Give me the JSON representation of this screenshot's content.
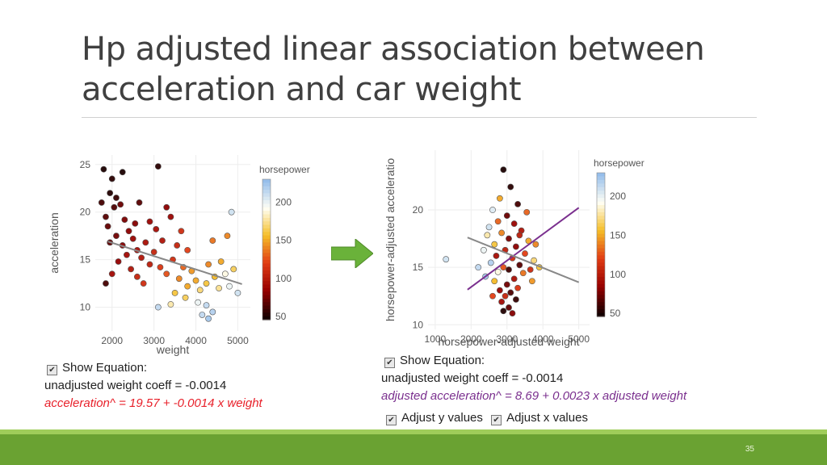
{
  "slide": {
    "title": "Hp adjusted linear association between acceleration and car weight",
    "page_number": "35",
    "arrow_color": "#6ab23a"
  },
  "left_panel": {
    "show_equation_label": "Show Equation:",
    "unadjusted_text": "unadjusted weight coeff = -0.0014",
    "equation": "acceleration^ = 19.57 + -0.0014 x weight",
    "equation_color": "#e8202a"
  },
  "right_panel": {
    "show_equation_label": "Show Equation:",
    "unadjusted_text": "unadjusted weight coeff = -0.0014",
    "equation": "adjusted acceleration^ = 8.69 + 0.0023 x adjusted weight",
    "equation_color": "#7a2f8e",
    "adjust_y_label": "Adjust y values",
    "adjust_x_label": "Adjust x values",
    "adjust_y_checked": true,
    "adjust_x_checked": true
  },
  "chart_data": [
    {
      "type": "scatter",
      "xlabel": "weight",
      "ylabel": "acceleration",
      "xlim": [
        1600,
        5300
      ],
      "ylim": [
        7.5,
        26
      ],
      "xticks": [
        2000,
        3000,
        4000,
        5000
      ],
      "yticks": [
        10,
        15,
        20,
        25
      ],
      "grid": true,
      "colorbar": {
        "title": "horsepower",
        "ticks": [
          50,
          100,
          150,
          200
        ],
        "range": [
          46,
          230
        ]
      },
      "lines": [
        {
          "name": "",
          "color": "#888888",
          "x": [
            1900,
            5100
          ],
          "y": [
            16.91,
            12.43
          ]
        }
      ],
      "points": [
        {
          "x": 1800,
          "y": 24.5,
          "hp": 48
        },
        {
          "x": 2000,
          "y": 23.5,
          "hp": 52
        },
        {
          "x": 1950,
          "y": 22.0,
          "hp": 50
        },
        {
          "x": 2100,
          "y": 21.5,
          "hp": 55
        },
        {
          "x": 1750,
          "y": 21.0,
          "hp": 60
        },
        {
          "x": 2050,
          "y": 20.5,
          "hp": 62
        },
        {
          "x": 1850,
          "y": 19.5,
          "hp": 65
        },
        {
          "x": 2200,
          "y": 20.8,
          "hp": 70
        },
        {
          "x": 1900,
          "y": 18.5,
          "hp": 68
        },
        {
          "x": 2300,
          "y": 19.2,
          "hp": 75
        },
        {
          "x": 2400,
          "y": 18.0,
          "hp": 80
        },
        {
          "x": 2100,
          "y": 17.5,
          "hp": 72
        },
        {
          "x": 1950,
          "y": 16.8,
          "hp": 67
        },
        {
          "x": 2250,
          "y": 16.5,
          "hp": 78
        },
        {
          "x": 2500,
          "y": 17.2,
          "hp": 85
        },
        {
          "x": 2600,
          "y": 16.0,
          "hp": 90
        },
        {
          "x": 2350,
          "y": 15.5,
          "hp": 88
        },
        {
          "x": 2700,
          "y": 15.2,
          "hp": 95
        },
        {
          "x": 2800,
          "y": 16.8,
          "hp": 92
        },
        {
          "x": 2900,
          "y": 14.5,
          "hp": 100
        },
        {
          "x": 2150,
          "y": 14.8,
          "hp": 82
        },
        {
          "x": 2450,
          "y": 14.0,
          "hp": 95
        },
        {
          "x": 2000,
          "y": 13.5,
          "hp": 88
        },
        {
          "x": 2600,
          "y": 13.2,
          "hp": 105
        },
        {
          "x": 2750,
          "y": 12.5,
          "hp": 110
        },
        {
          "x": 2900,
          "y": 19.0,
          "hp": 85
        },
        {
          "x": 3050,
          "y": 18.2,
          "hp": 90
        },
        {
          "x": 3200,
          "y": 17.0,
          "hp": 95
        },
        {
          "x": 3100,
          "y": 24.8,
          "hp": 52
        },
        {
          "x": 2250,
          "y": 24.2,
          "hp": 48
        },
        {
          "x": 3300,
          "y": 20.5,
          "hp": 80
        },
        {
          "x": 3400,
          "y": 19.5,
          "hp": 85
        },
        {
          "x": 3000,
          "y": 15.8,
          "hp": 105
        },
        {
          "x": 3150,
          "y": 14.2,
          "hp": 115
        },
        {
          "x": 3300,
          "y": 13.5,
          "hp": 125
        },
        {
          "x": 3450,
          "y": 15.0,
          "hp": 110
        },
        {
          "x": 3550,
          "y": 16.5,
          "hp": 105
        },
        {
          "x": 3600,
          "y": 13.0,
          "hp": 140
        },
        {
          "x": 3700,
          "y": 14.2,
          "hp": 130
        },
        {
          "x": 3800,
          "y": 12.2,
          "hp": 150
        },
        {
          "x": 3900,
          "y": 13.8,
          "hp": 145
        },
        {
          "x": 4000,
          "y": 12.8,
          "hp": 150
        },
        {
          "x": 3500,
          "y": 11.5,
          "hp": 160
        },
        {
          "x": 3750,
          "y": 11.0,
          "hp": 165
        },
        {
          "x": 4100,
          "y": 11.8,
          "hp": 170
        },
        {
          "x": 4250,
          "y": 12.5,
          "hp": 160
        },
        {
          "x": 4300,
          "y": 14.5,
          "hp": 140
        },
        {
          "x": 4450,
          "y": 13.2,
          "hp": 155
        },
        {
          "x": 4550,
          "y": 12.0,
          "hp": 175
        },
        {
          "x": 4600,
          "y": 14.8,
          "hp": 150
        },
        {
          "x": 4700,
          "y": 13.5,
          "hp": 190
        },
        {
          "x": 4800,
          "y": 12.2,
          "hp": 200
        },
        {
          "x": 4900,
          "y": 14.0,
          "hp": 165
        },
        {
          "x": 4250,
          "y": 10.2,
          "hp": 215
        },
        {
          "x": 4400,
          "y": 9.5,
          "hp": 220
        },
        {
          "x": 4300,
          "y": 8.8,
          "hp": 225
        },
        {
          "x": 4150,
          "y": 9.2,
          "hp": 215
        },
        {
          "x": 4050,
          "y": 10.5,
          "hp": 200
        },
        {
          "x": 3100,
          "y": 10.0,
          "hp": 215
        },
        {
          "x": 3400,
          "y": 10.3,
          "hp": 180
        },
        {
          "x": 5000,
          "y": 11.5,
          "hp": 210
        },
        {
          "x": 4750,
          "y": 17.5,
          "hp": 140
        },
        {
          "x": 4400,
          "y": 17.0,
          "hp": 135
        },
        {
          "x": 1850,
          "y": 12.5,
          "hp": 60
        },
        {
          "x": 2650,
          "y": 21.0,
          "hp": 65
        },
        {
          "x": 2550,
          "y": 18.8,
          "hp": 78
        },
        {
          "x": 3800,
          "y": 16.0,
          "hp": 120
        },
        {
          "x": 3650,
          "y": 18.0,
          "hp": 110
        },
        {
          "x": 4850,
          "y": 20.0,
          "hp": 210
        }
      ]
    },
    {
      "type": "scatter",
      "xlabel": "horsepower-adjusted weight",
      "ylabel": "horsepower-adjusted acceleratio",
      "xlim": [
        800,
        5300
      ],
      "ylim": [
        9.6,
        25.2
      ],
      "xticks": [
        1000,
        2000,
        3000,
        4000,
        5000
      ],
      "yticks": [
        10,
        15,
        20
      ],
      "grid": true,
      "colorbar": {
        "title": "horsepower",
        "ticks": [
          50,
          100,
          150,
          200
        ],
        "range": [
          46,
          230
        ]
      },
      "lines": [
        {
          "name": "",
          "color": "#7a2f8e",
          "x": [
            1900,
            5000
          ],
          "y": [
            13.06,
            20.19
          ]
        },
        {
          "name": "",
          "color": "#888888",
          "x": [
            1900,
            5000
          ],
          "y": [
            17.6,
            13.7
          ]
        }
      ],
      "points": [
        {
          "x": 2900,
          "y": 23.5,
          "hp": 48
        },
        {
          "x": 3100,
          "y": 22.0,
          "hp": 52
        },
        {
          "x": 2800,
          "y": 21.0,
          "hp": 150
        },
        {
          "x": 3300,
          "y": 20.5,
          "hp": 60
        },
        {
          "x": 2600,
          "y": 20.0,
          "hp": 205
        },
        {
          "x": 3000,
          "y": 19.5,
          "hp": 70
        },
        {
          "x": 2750,
          "y": 19.0,
          "hp": 130
        },
        {
          "x": 3200,
          "y": 18.8,
          "hp": 85
        },
        {
          "x": 2500,
          "y": 18.5,
          "hp": 210
        },
        {
          "x": 3400,
          "y": 18.2,
          "hp": 95
        },
        {
          "x": 2850,
          "y": 18.0,
          "hp": 140
        },
        {
          "x": 3050,
          "y": 17.5,
          "hp": 75
        },
        {
          "x": 3600,
          "y": 17.3,
          "hp": 150
        },
        {
          "x": 2650,
          "y": 17.0,
          "hp": 160
        },
        {
          "x": 3250,
          "y": 16.8,
          "hp": 80
        },
        {
          "x": 2950,
          "y": 16.5,
          "hp": 100
        },
        {
          "x": 3500,
          "y": 16.2,
          "hp": 120
        },
        {
          "x": 2700,
          "y": 16.0,
          "hp": 90
        },
        {
          "x": 3150,
          "y": 15.8,
          "hp": 110
        },
        {
          "x": 1300,
          "y": 15.7,
          "hp": 210
        },
        {
          "x": 3750,
          "y": 15.6,
          "hp": 170
        },
        {
          "x": 2550,
          "y": 15.4,
          "hp": 220
        },
        {
          "x": 3350,
          "y": 15.2,
          "hp": 65
        },
        {
          "x": 2900,
          "y": 15.0,
          "hp": 125
        },
        {
          "x": 3050,
          "y": 14.8,
          "hp": 58
        },
        {
          "x": 2750,
          "y": 14.6,
          "hp": 190
        },
        {
          "x": 3450,
          "y": 14.5,
          "hp": 135
        },
        {
          "x": 2400,
          "y": 14.2,
          "hp": 225
        },
        {
          "x": 3200,
          "y": 14.0,
          "hp": 92
        },
        {
          "x": 2650,
          "y": 13.8,
          "hp": 155
        },
        {
          "x": 3000,
          "y": 13.5,
          "hp": 72
        },
        {
          "x": 3300,
          "y": 13.2,
          "hp": 115
        },
        {
          "x": 2800,
          "y": 13.0,
          "hp": 82
        },
        {
          "x": 3100,
          "y": 12.8,
          "hp": 62
        },
        {
          "x": 2950,
          "y": 12.5,
          "hp": 105
        },
        {
          "x": 3250,
          "y": 12.2,
          "hp": 55
        },
        {
          "x": 2850,
          "y": 12.0,
          "hp": 88
        },
        {
          "x": 3050,
          "y": 11.5,
          "hp": 68
        },
        {
          "x": 2900,
          "y": 11.2,
          "hp": 50
        },
        {
          "x": 3150,
          "y": 11.0,
          "hp": 78
        },
        {
          "x": 3700,
          "y": 13.8,
          "hp": 145
        },
        {
          "x": 3900,
          "y": 15.0,
          "hp": 160
        },
        {
          "x": 2350,
          "y": 16.5,
          "hp": 200
        },
        {
          "x": 2200,
          "y": 15.0,
          "hp": 215
        },
        {
          "x": 3550,
          "y": 19.8,
          "hp": 130
        },
        {
          "x": 2450,
          "y": 17.8,
          "hp": 180
        },
        {
          "x": 3800,
          "y": 17.0,
          "hp": 140
        },
        {
          "x": 2600,
          "y": 12.5,
          "hp": 120
        },
        {
          "x": 3350,
          "y": 17.8,
          "hp": 100
        },
        {
          "x": 3650,
          "y": 14.8,
          "hp": 108
        }
      ]
    }
  ]
}
